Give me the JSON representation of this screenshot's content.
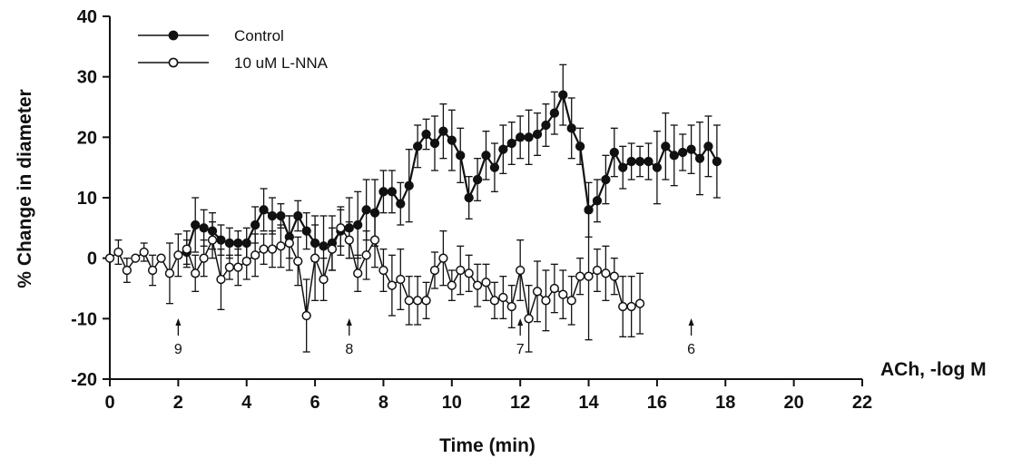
{
  "chart_data": {
    "type": "line",
    "xlabel": "Time (min)",
    "ylabel": "% Change in diameter",
    "xlim": [
      0,
      22
    ],
    "ylim": [
      -20,
      40
    ],
    "xticks": [
      "0",
      "2",
      "4",
      "6",
      "8",
      "10",
      "12",
      "14",
      "16",
      "18",
      "20",
      "22"
    ],
    "yticks": [
      "-20",
      "-10",
      "0",
      "10",
      "20",
      "30",
      "40"
    ],
    "grid": false,
    "legend_position": "top-left",
    "series": [
      {
        "name": "Control",
        "marker": "filled-circle",
        "points": [
          [
            2.25,
            1.0,
            2.0
          ],
          [
            2.5,
            5.5,
            4.5
          ],
          [
            2.75,
            5.0,
            3.0
          ],
          [
            3.0,
            4.5,
            3.0
          ],
          [
            3.25,
            3.0,
            2.5
          ],
          [
            3.5,
            2.5,
            2.5
          ],
          [
            3.75,
            2.5,
            2.0
          ],
          [
            4.0,
            2.5,
            2.5
          ],
          [
            4.25,
            5.5,
            3.0
          ],
          [
            4.5,
            8.0,
            3.5
          ],
          [
            4.75,
            7.0,
            3.0
          ],
          [
            5.0,
            7.0,
            2.0
          ],
          [
            5.25,
            3.5,
            3.5
          ],
          [
            5.5,
            7.0,
            2.5
          ],
          [
            5.75,
            4.5,
            3.0
          ],
          [
            6.0,
            2.5,
            3.0
          ],
          [
            6.25,
            2.0,
            5.0
          ],
          [
            6.5,
            2.5,
            4.5
          ],
          [
            6.75,
            4.5,
            4.0
          ],
          [
            7.0,
            5.0,
            5.0
          ],
          [
            7.25,
            5.5,
            5.5
          ],
          [
            7.5,
            8.0,
            5.0
          ],
          [
            7.75,
            7.5,
            5.5
          ],
          [
            8.0,
            11.0,
            3.5
          ],
          [
            8.25,
            11.0,
            3.5
          ],
          [
            8.5,
            9.0,
            3.5
          ],
          [
            8.75,
            12.0,
            6.0
          ],
          [
            9.0,
            18.5,
            3.5
          ],
          [
            9.25,
            20.5,
            2.5
          ],
          [
            9.5,
            19.0,
            4.5
          ],
          [
            9.75,
            21.0,
            4.5
          ],
          [
            10.0,
            19.5,
            5.0
          ],
          [
            10.25,
            17.0,
            4.5
          ],
          [
            10.5,
            10.0,
            3.5
          ],
          [
            10.75,
            13.0,
            3.5
          ],
          [
            11.0,
            17.0,
            4.0
          ],
          [
            11.25,
            15.0,
            4.0
          ],
          [
            11.5,
            18.0,
            4.0
          ],
          [
            11.75,
            19.0,
            3.5
          ],
          [
            12.0,
            20.0,
            3.5
          ],
          [
            12.25,
            20.0,
            4.5
          ],
          [
            12.5,
            20.5,
            3.5
          ],
          [
            12.75,
            22.0,
            3.5
          ],
          [
            13.0,
            24.0,
            3.5
          ],
          [
            13.25,
            27.0,
            5.0
          ],
          [
            13.5,
            21.5,
            5.0
          ],
          [
            13.75,
            18.5,
            3.0
          ],
          [
            14.0,
            8.0,
            4.5
          ],
          [
            14.25,
            9.5,
            3.5
          ],
          [
            14.5,
            13.0,
            4.0
          ],
          [
            14.75,
            17.5,
            4.0
          ],
          [
            15.0,
            15.0,
            3.5
          ],
          [
            15.25,
            16.0,
            3.0
          ],
          [
            15.5,
            16.0,
            2.5
          ],
          [
            15.75,
            16.0,
            3.0
          ],
          [
            16.0,
            15.0,
            6.0
          ],
          [
            16.25,
            18.5,
            5.5
          ],
          [
            16.5,
            17.0,
            5.0
          ],
          [
            16.75,
            17.5,
            3.0
          ],
          [
            17.0,
            18.0,
            4.0
          ],
          [
            17.25,
            16.5,
            6.0
          ],
          [
            17.5,
            18.5,
            5.0
          ],
          [
            17.75,
            16.0,
            6.0
          ]
        ]
      },
      {
        "name": "10 uM L-NNA",
        "marker": "open-circle",
        "points": [
          [
            0.0,
            0.0,
            0.0
          ],
          [
            0.25,
            1.0,
            2.0
          ],
          [
            0.5,
            -2.0,
            2.0
          ],
          [
            0.75,
            0.0,
            0.0
          ],
          [
            1.0,
            1.0,
            1.5
          ],
          [
            1.25,
            -2.0,
            2.5
          ],
          [
            1.5,
            0.0,
            0.0
          ],
          [
            1.75,
            -2.5,
            5.0
          ],
          [
            2.0,
            0.5,
            3.5
          ],
          [
            2.25,
            1.5,
            3.0
          ],
          [
            2.5,
            -2.5,
            3.0
          ],
          [
            2.75,
            0.0,
            3.0
          ],
          [
            3.0,
            3.0,
            3.0
          ],
          [
            3.25,
            -3.5,
            5.0
          ],
          [
            3.5,
            -1.5,
            2.0
          ],
          [
            3.75,
            -1.5,
            3.0
          ],
          [
            4.0,
            -0.5,
            3.0
          ],
          [
            4.25,
            0.5,
            3.5
          ],
          [
            4.5,
            1.5,
            2.5
          ],
          [
            4.75,
            1.5,
            3.0
          ],
          [
            5.0,
            2.0,
            3.5
          ],
          [
            5.25,
            2.5,
            4.5
          ],
          [
            5.5,
            -0.5,
            4.0
          ],
          [
            5.75,
            -9.5,
            6.0
          ],
          [
            6.0,
            0.0,
            7.0
          ],
          [
            6.25,
            -3.5,
            3.5
          ],
          [
            6.5,
            1.5,
            3.5
          ],
          [
            6.75,
            5.0,
            3.0
          ],
          [
            7.0,
            3.0,
            3.0
          ],
          [
            7.25,
            -2.5,
            3.0
          ],
          [
            7.5,
            0.5,
            4.0
          ],
          [
            7.75,
            3.0,
            4.5
          ],
          [
            8.0,
            -2.0,
            3.5
          ],
          [
            8.25,
            -4.5,
            5.0
          ],
          [
            8.5,
            -3.5,
            5.0
          ],
          [
            8.75,
            -7.0,
            4.0
          ],
          [
            9.0,
            -7.0,
            4.0
          ],
          [
            9.25,
            -7.0,
            3.0
          ],
          [
            9.5,
            -2.0,
            3.0
          ],
          [
            9.75,
            0.0,
            4.5
          ],
          [
            10.0,
            -4.5,
            2.5
          ],
          [
            10.25,
            -2.0,
            4.0
          ],
          [
            10.5,
            -2.5,
            3.0
          ],
          [
            10.75,
            -4.5,
            3.5
          ],
          [
            11.0,
            -4.0,
            3.0
          ],
          [
            11.25,
            -7.0,
            3.0
          ],
          [
            11.5,
            -6.5,
            3.5
          ],
          [
            11.75,
            -8.0,
            3.5
          ],
          [
            12.0,
            -2.0,
            5.0
          ],
          [
            12.25,
            -10.0,
            5.5
          ],
          [
            12.5,
            -5.5,
            5.0
          ],
          [
            12.75,
            -7.0,
            5.0
          ],
          [
            13.0,
            -5.0,
            4.0
          ],
          [
            13.25,
            -6.0,
            4.0
          ],
          [
            13.5,
            -7.0,
            4.0
          ],
          [
            13.75,
            -3.0,
            3.0
          ],
          [
            14.0,
            -3.0,
            10.5
          ],
          [
            14.25,
            -2.0,
            3.5
          ],
          [
            14.5,
            -2.5,
            4.5
          ],
          [
            14.75,
            -3.0,
            3.0
          ],
          [
            15.0,
            -8.0,
            5.0
          ],
          [
            15.25,
            -8.0,
            5.0
          ],
          [
            15.5,
            -7.5,
            5.0
          ]
        ]
      }
    ],
    "markers": [
      {
        "x": 2,
        "label": "9"
      },
      {
        "x": 7,
        "label": "8"
      },
      {
        "x": 12,
        "label": "7"
      },
      {
        "x": 17,
        "label": "6"
      }
    ],
    "marker_axis_label": "ACh, -log M"
  }
}
